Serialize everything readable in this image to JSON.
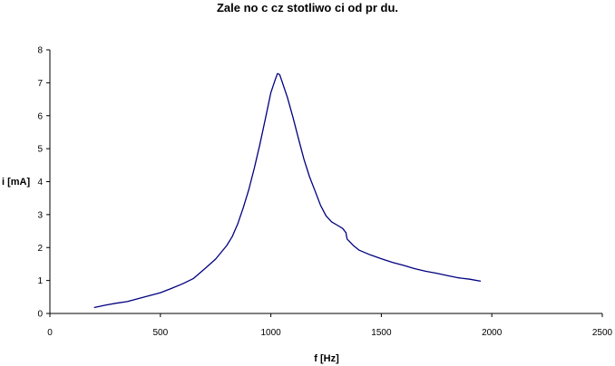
{
  "chart_data": {
    "type": "line",
    "title": "Zale  no   c cz   stotliwo   ci od pr   du.",
    "xlabel": "f [Hz]",
    "ylabel": "i [mA]",
    "xlim": [
      0,
      2500
    ],
    "ylim": [
      0,
      8
    ],
    "x_ticks": [
      0,
      500,
      1000,
      1500,
      2000,
      2500
    ],
    "y_ticks": [
      0,
      1,
      2,
      3,
      4,
      5,
      6,
      7,
      8
    ],
    "grid": false,
    "legend": "none",
    "series": [
      {
        "color": "#000080",
        "points": [
          [
            200,
            0.18
          ],
          [
            250,
            0.25
          ],
          [
            300,
            0.31
          ],
          [
            350,
            0.36
          ],
          [
            400,
            0.45
          ],
          [
            450,
            0.54
          ],
          [
            500,
            0.63
          ],
          [
            550,
            0.76
          ],
          [
            600,
            0.9
          ],
          [
            650,
            1.06
          ],
          [
            700,
            1.35
          ],
          [
            750,
            1.65
          ],
          [
            800,
            2.06
          ],
          [
            825,
            2.33
          ],
          [
            850,
            2.72
          ],
          [
            875,
            3.2
          ],
          [
            900,
            3.75
          ],
          [
            925,
            4.4
          ],
          [
            950,
            5.12
          ],
          [
            975,
            5.9
          ],
          [
            1000,
            6.7
          ],
          [
            1020,
            7.1
          ],
          [
            1030,
            7.28
          ],
          [
            1040,
            7.25
          ],
          [
            1050,
            7.05
          ],
          [
            1075,
            6.55
          ],
          [
            1100,
            5.95
          ],
          [
            1125,
            5.3
          ],
          [
            1150,
            4.68
          ],
          [
            1175,
            4.15
          ],
          [
            1200,
            3.72
          ],
          [
            1225,
            3.28
          ],
          [
            1250,
            2.96
          ],
          [
            1275,
            2.78
          ],
          [
            1300,
            2.68
          ],
          [
            1325,
            2.58
          ],
          [
            1340,
            2.45
          ],
          [
            1345,
            2.26
          ],
          [
            1375,
            2.05
          ],
          [
            1400,
            1.92
          ],
          [
            1450,
            1.78
          ],
          [
            1500,
            1.66
          ],
          [
            1550,
            1.55
          ],
          [
            1600,
            1.46
          ],
          [
            1650,
            1.36
          ],
          [
            1700,
            1.28
          ],
          [
            1750,
            1.22
          ],
          [
            1800,
            1.15
          ],
          [
            1850,
            1.08
          ],
          [
            1900,
            1.04
          ],
          [
            1950,
            0.98
          ]
        ]
      }
    ]
  }
}
